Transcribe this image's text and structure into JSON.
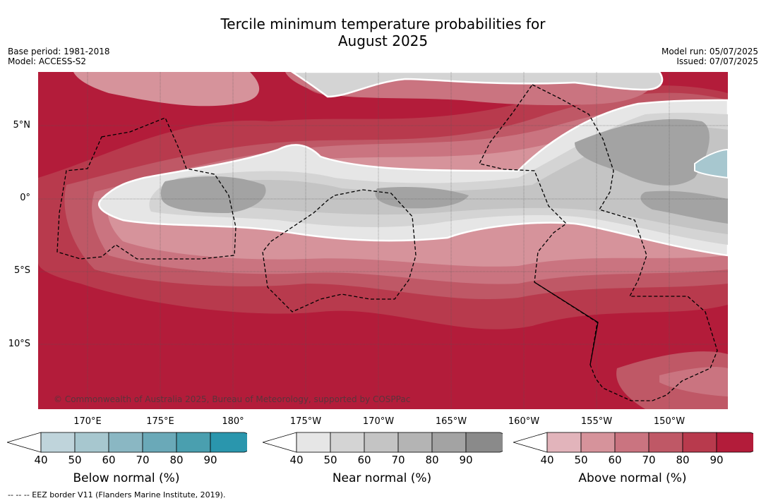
{
  "title_line1": "Tercile minimum temperature probabilities for",
  "title_line2": "August 2025",
  "base_period": "Base period: 1981-2018",
  "model": "Model: ACCESS-S2",
  "model_run": "Model run: 05/07/2025",
  "issued": "Issued: 07/07/2025",
  "map": {
    "lat_labels": [
      "5°N",
      "0°",
      "5°S",
      "10°S"
    ],
    "lon_labels": [
      "170°E",
      "175°E",
      "180°",
      "175°W",
      "170°W",
      "165°W",
      "160°W",
      "155°W",
      "150°W"
    ],
    "copyright": "© Commonwealth of Australia 2025, Bureau of Meteorology, supported by COSPPac"
  },
  "colorbars": [
    {
      "title": "Below normal (%)",
      "ticks": [
        "40",
        "50",
        "60",
        "70",
        "80",
        "90"
      ],
      "colors": [
        "#bfd4db",
        "#a7c7cf",
        "#8ab7c3",
        "#6aa9b8",
        "#4a9faf",
        "#2a96ad"
      ]
    },
    {
      "title": "Near normal (%)",
      "ticks": [
        "40",
        "50",
        "60",
        "70",
        "80",
        "90"
      ],
      "colors": [
        "#e6e6e6",
        "#d4d4d4",
        "#c4c4c4",
        "#b4b4b4",
        "#a3a3a3",
        "#8a8a8a"
      ]
    },
    {
      "title": "Above normal (%)",
      "ticks": [
        "40",
        "50",
        "60",
        "70",
        "80",
        "90"
      ],
      "colors": [
        "#e2b4bb",
        "#d6939b",
        "#ca7480",
        "#bf5866",
        "#b83a4d",
        "#b31c3a"
      ]
    }
  ],
  "footnote": "--  --  -- EEZ border V11 (Flanders Marine Institute, 2019)."
}
